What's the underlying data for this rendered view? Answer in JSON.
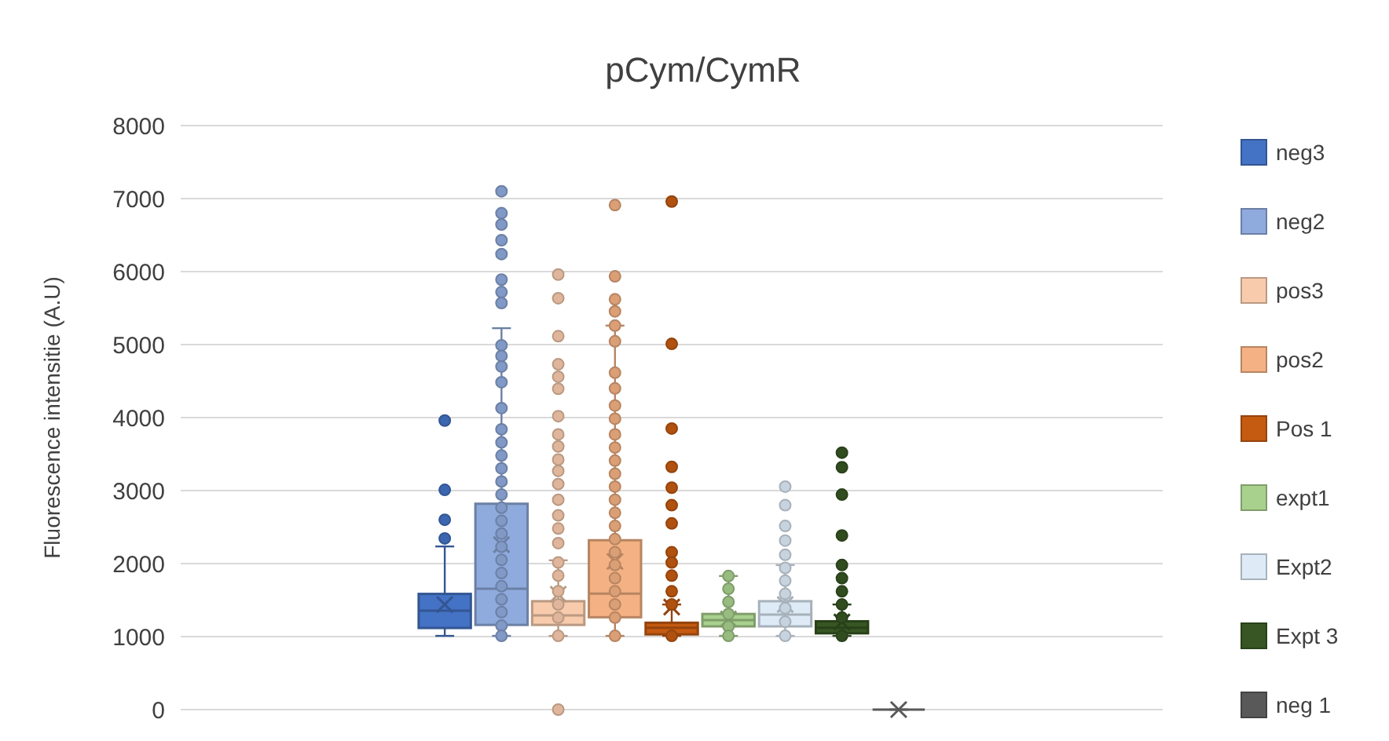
{
  "chart_data": {
    "type": "box",
    "title": "pCym/CymR",
    "ylabel": "Fluorescence intensitie (A.U)",
    "categories": [
      null
    ],
    "ylim": [
      0,
      8000
    ],
    "yticks": [
      0,
      1000,
      2000,
      3000,
      4000,
      5000,
      6000,
      7000,
      8000
    ],
    "grid": "y",
    "legend": "right",
    "marker": "circle",
    "series": [
      {
        "name": "neg3",
        "color": "#4472c4",
        "boxes": [
          {
            "low": 1010,
            "q1": 1118,
            "median": 1355,
            "q3": 1585,
            "high": 2235,
            "mean": 1440,
            "outliers": [
              3960,
              3010,
              2600,
              2345
            ]
          }
        ]
      },
      {
        "name": "neg2",
        "color": "#8faadc",
        "boxes": [
          {
            "low": 1010,
            "q1": 1160,
            "median": 1655,
            "q3": 2820,
            "high": 5225,
            "mean": 2260,
            "outliers": [
              7100,
              6800,
              6645,
              6430,
              6240,
              5890,
              5720,
              5570,
              4990,
              4845,
              4700,
              4485,
              4130,
              3840,
              3660,
              3480,
              3305,
              3125,
              2945,
              2765,
              2585,
              2410,
              2230,
              2050,
              1870,
              1690,
              1510,
              1335,
              1150,
              1010
            ]
          }
        ]
      },
      {
        "name": "pos3",
        "color": "#f8cbad",
        "boxes": [
          {
            "low": 1010,
            "q1": 1160,
            "median": 1290,
            "q3": 1485,
            "high": 2045,
            "mean": 1580,
            "outliers": [
              5960,
              5635,
              5115,
              4730,
              4560,
              4395,
              4020,
              3770,
              3605,
              3425,
              3270,
              3090,
              2875,
              2660,
              2480,
              2280,
              2015,
              1835,
              1620,
              1440,
              1260,
              1010,
              0
            ]
          }
        ]
      },
      {
        "name": "pos2",
        "color": "#f4b183",
        "boxes": [
          {
            "low": 1010,
            "q1": 1265,
            "median": 1590,
            "q3": 2320,
            "high": 5260,
            "mean": 2030,
            "outliers": [
              6910,
              5935,
              5620,
              5455,
              5260,
              5045,
              4615,
              4400,
              4165,
              3985,
              3770,
              3590,
              3410,
              3230,
              3055,
              2875,
              2695,
              2515,
              2335,
              2155,
              1980,
              1800,
              1620,
              1440,
              1260,
              1010
            ]
          }
        ]
      },
      {
        "name": "Pos 1",
        "color": "#c55a11",
        "boxes": [
          {
            "low": 1010,
            "q1": 1030,
            "median": 1120,
            "q3": 1190,
            "high": 1440,
            "mean": 1405,
            "outliers": [
              6960,
              5010,
              3850,
              3325,
              3040,
              2800,
              2550,
              2155,
              2015,
              1835,
              1620,
              1440,
              1010
            ]
          }
        ]
      },
      {
        "name": "expt1",
        "color": "#a9d18e",
        "boxes": [
          {
            "low": 1010,
            "q1": 1140,
            "median": 1225,
            "q3": 1310,
            "high": 1830,
            "mean": 1240,
            "outliers": [
              1830,
              1655,
              1475,
              1310,
              1140,
              1010
            ]
          }
        ]
      },
      {
        "name": "Expt2",
        "color": "#deebf7",
        "boxes": [
          {
            "low": 1010,
            "q1": 1140,
            "median": 1300,
            "q3": 1485,
            "high": 1980,
            "mean": 1440,
            "outliers": [
              3055,
              2800,
              2515,
              2315,
              2120,
              1940,
              1765,
              1585,
              1390,
              1205,
              1010
            ]
          }
        ]
      },
      {
        "name": "Expt 3",
        "color": "#375623",
        "boxes": [
          {
            "low": 1010,
            "q1": 1045,
            "median": 1120,
            "q3": 1210,
            "high": 1440,
            "mean": 1200,
            "outliers": [
              3520,
              3320,
              2945,
              2385,
              1980,
              1800,
              1620,
              1440,
              1260,
              1010
            ]
          }
        ]
      },
      {
        "name": "neg 1",
        "color": "#595959",
        "boxes": [
          {
            "low": 0,
            "q1": 0,
            "median": 0,
            "q3": 0,
            "high": 0,
            "mean": 0
          }
        ]
      }
    ]
  }
}
